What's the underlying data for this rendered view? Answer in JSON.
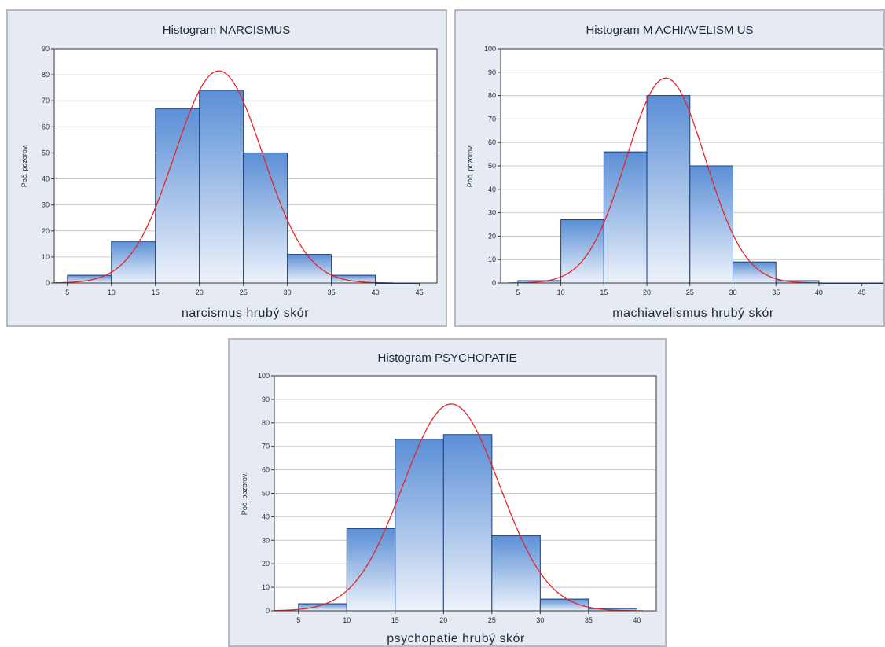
{
  "chart_data": [
    {
      "type": "bar",
      "title": "Histogram NARCISMUS",
      "xlabel": "narcismus hrubý skór",
      "ylabel": "Poč. pozorov.",
      "bins": [
        [
          5,
          10
        ],
        [
          10,
          15
        ],
        [
          15,
          20
        ],
        [
          20,
          25
        ],
        [
          25,
          30
        ],
        [
          30,
          35
        ],
        [
          35,
          40
        ],
        [
          40,
          45
        ]
      ],
      "values": [
        3,
        16,
        67,
        74,
        50,
        11,
        3,
        0
      ],
      "xticks": [
        5,
        10,
        15,
        20,
        25,
        30,
        35,
        40,
        45
      ],
      "yticks": [
        0,
        10,
        20,
        30,
        40,
        50,
        60,
        70,
        80,
        90
      ],
      "xlim": [
        3.5,
        47
      ],
      "ylim": [
        0,
        90
      ],
      "grid": true,
      "normal_curve": {
        "mean": 22.2,
        "sd": 5.0,
        "peak": 81.5,
        "color": "#e32626"
      },
      "bar_colors": {
        "top": "#5b8fd6",
        "bottom": "#eef3fb",
        "edge": "#1e3f80"
      }
    },
    {
      "type": "bar",
      "title": "Histogram M ACHIAVELISM US",
      "xlabel": "machiavelismus hrubý skór",
      "ylabel": "Poč. pozorov.",
      "bins": [
        [
          5,
          10
        ],
        [
          10,
          15
        ],
        [
          15,
          20
        ],
        [
          20,
          25
        ],
        [
          25,
          30
        ],
        [
          30,
          35
        ],
        [
          35,
          40
        ],
        [
          40,
          45
        ],
        [
          45,
          50
        ]
      ],
      "values": [
        1,
        27,
        56,
        80,
        50,
        9,
        1,
        0,
        0
      ],
      "xticks": [
        5,
        10,
        15,
        20,
        25,
        30,
        35,
        40,
        45
      ],
      "yticks": [
        0,
        10,
        20,
        30,
        40,
        50,
        60,
        70,
        80,
        90,
        100
      ],
      "xlim": [
        3,
        47.5
      ],
      "ylim": [
        0,
        100
      ],
      "grid": true,
      "normal_curve": {
        "mean": 22.2,
        "sd": 4.6,
        "peak": 87.5,
        "color": "#e32626"
      },
      "bar_colors": {
        "top": "#5b8fd6",
        "bottom": "#eef3fb",
        "edge": "#1e3f80"
      }
    },
    {
      "type": "bar",
      "title": "Histogram PSYCHOPATIE",
      "xlabel": "psychopatie hrubý skór",
      "ylabel": "Poč. pozorov.",
      "bins": [
        [
          5,
          10
        ],
        [
          10,
          15
        ],
        [
          15,
          20
        ],
        [
          20,
          25
        ],
        [
          25,
          30
        ],
        [
          30,
          35
        ],
        [
          35,
          40
        ]
      ],
      "values": [
        3,
        35,
        73,
        75,
        32,
        5,
        1
      ],
      "xticks": [
        5,
        10,
        15,
        20,
        25,
        30,
        35,
        40
      ],
      "yticks": [
        0,
        10,
        20,
        30,
        40,
        50,
        60,
        70,
        80,
        90,
        100
      ],
      "xlim": [
        2.5,
        42
      ],
      "ylim": [
        0,
        100
      ],
      "grid": true,
      "normal_curve": {
        "mean": 20.8,
        "sd": 5.0,
        "peak": 88,
        "color": "#e32626"
      },
      "bar_colors": {
        "top": "#5b8fd6",
        "bottom": "#eef3fb",
        "edge": "#1e3f80"
      }
    }
  ]
}
